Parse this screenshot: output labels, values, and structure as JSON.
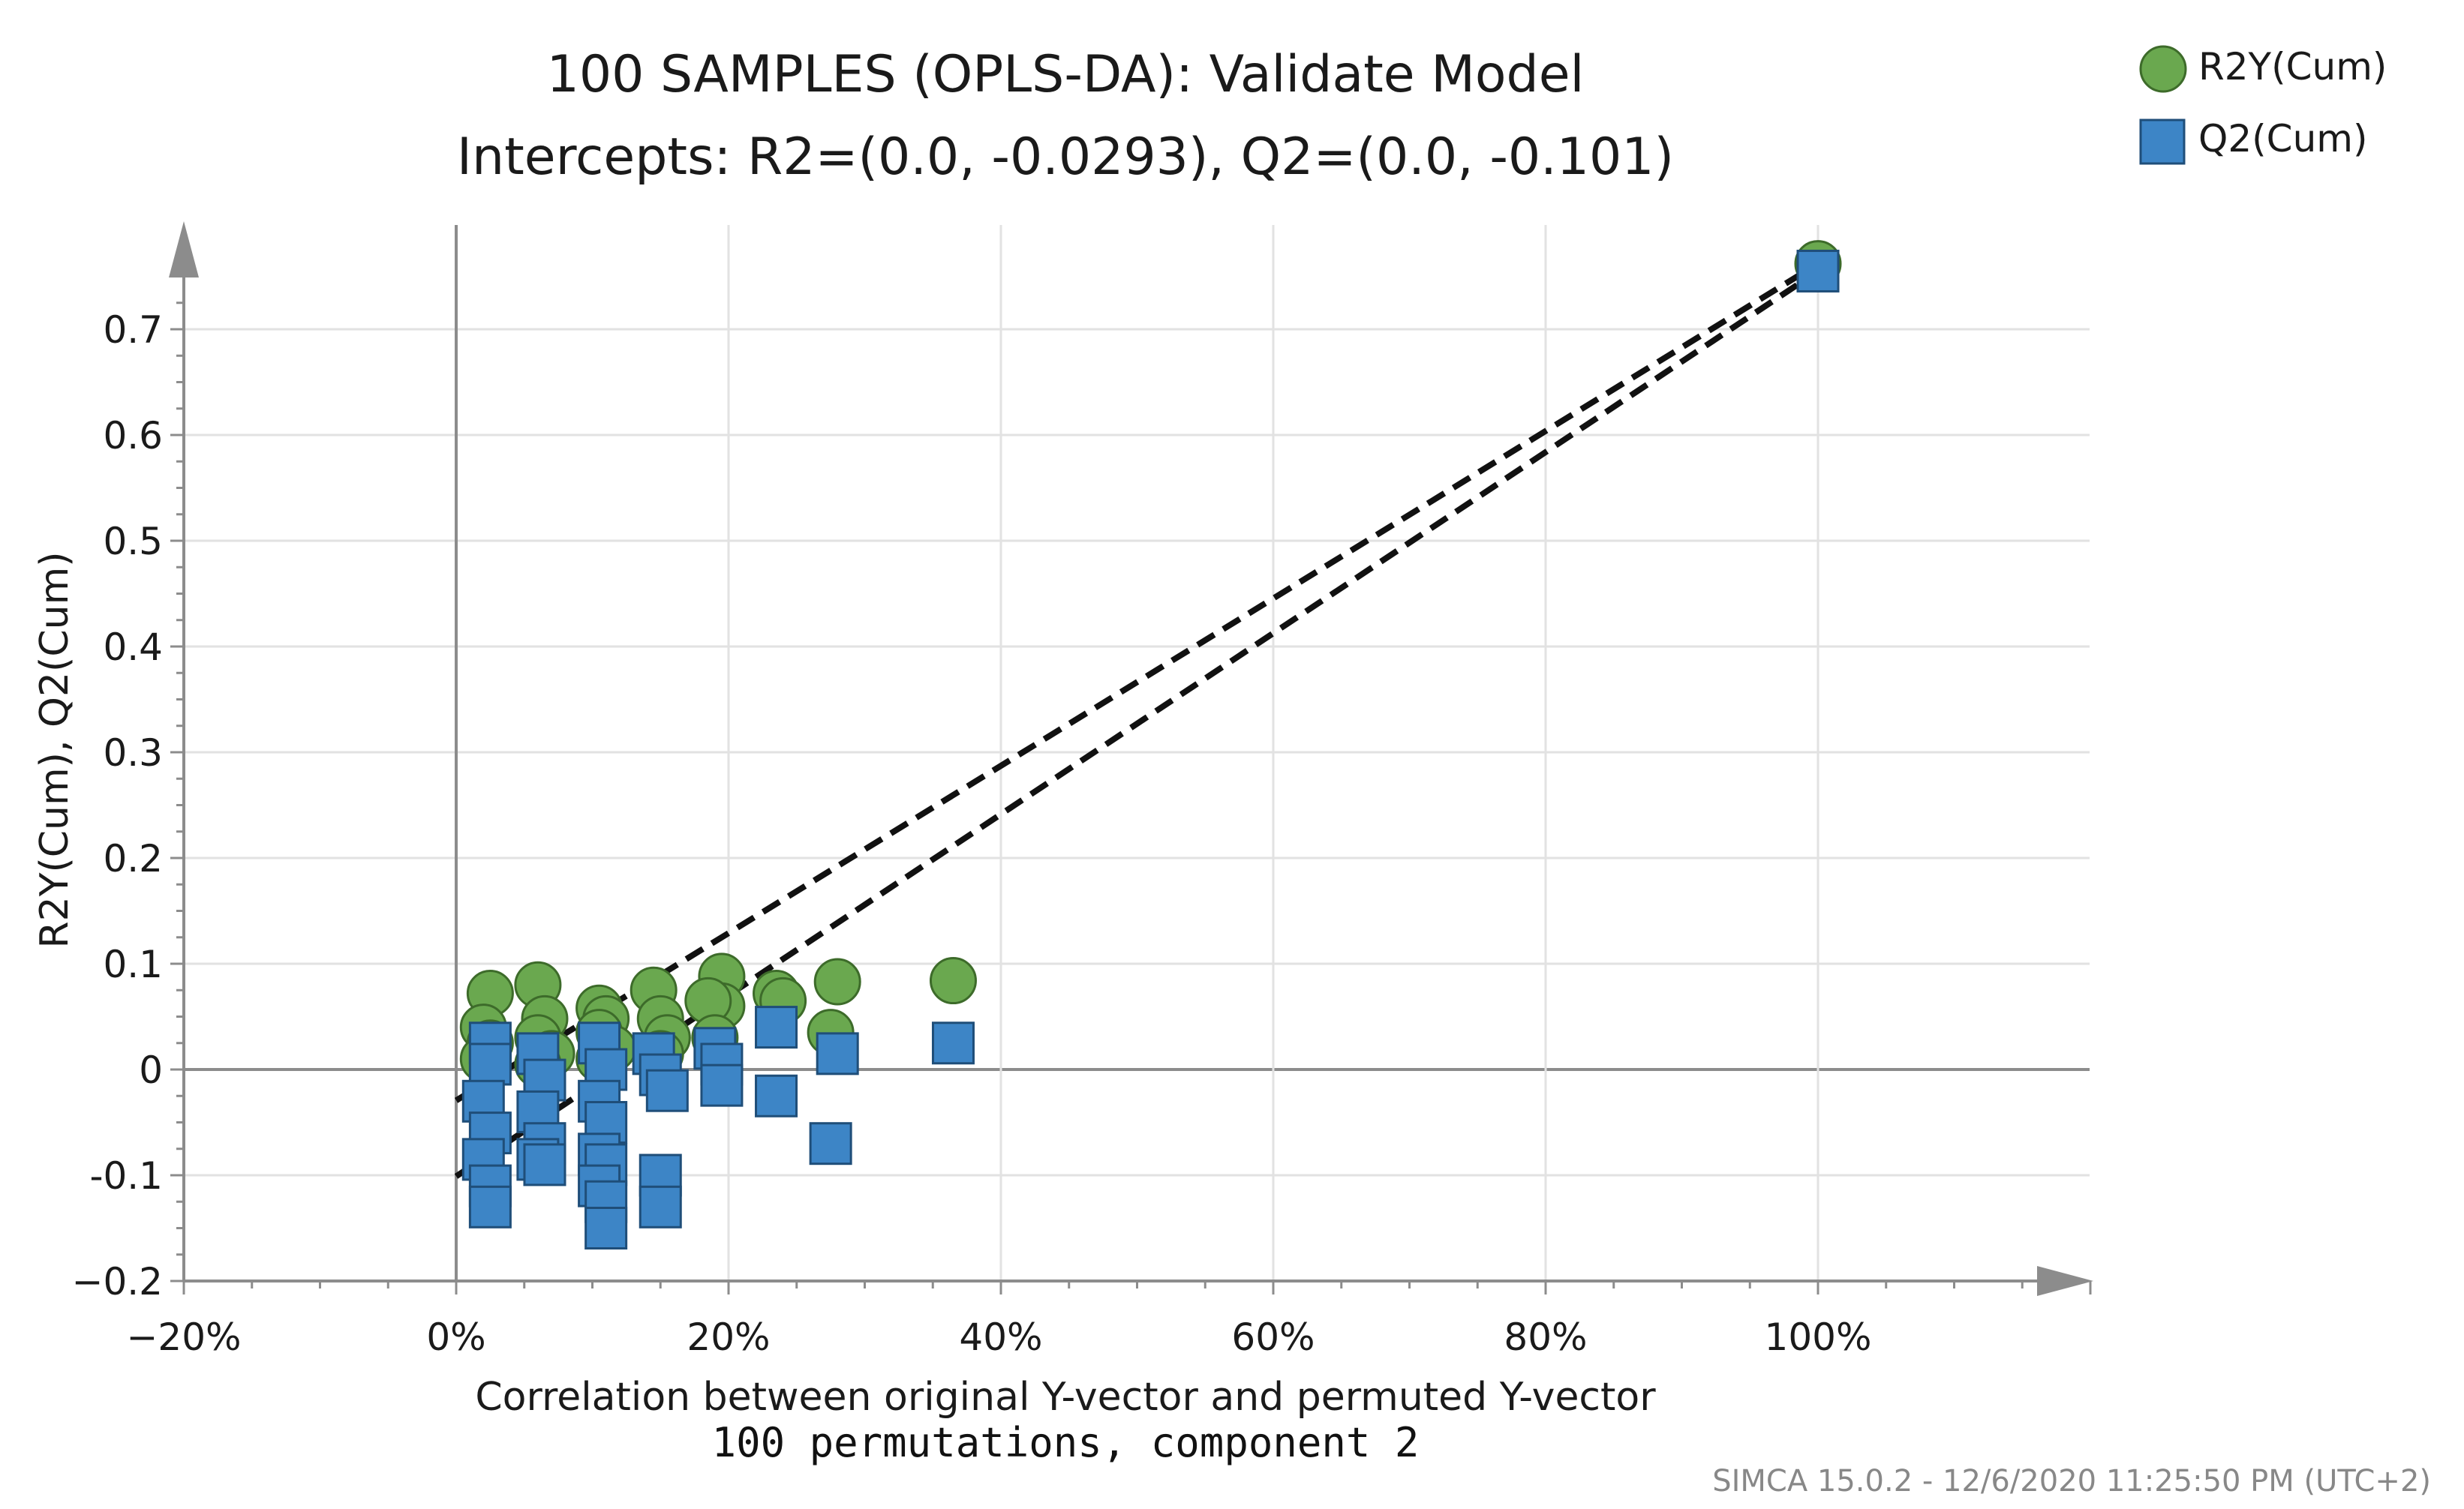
{
  "chart_data": {
    "type": "scatter",
    "title": "100 SAMPLES (OPLS-DA): Validate Model",
    "subtitle": "Intercepts: R2=(0.0, -0.0293), Q2=(0.0, -0.101)",
    "xlabel": "Correlation between original Y-vector and permuted Y-vector",
    "xlabel2": "100 permutations, component 2",
    "ylabel": "R2Y(Cum), Q2(Cum)",
    "footer": "SIMCA 15.0.2 - 12/6/2020 11:25:50 PM (UTC+2)",
    "xlim": [
      -20,
      120
    ],
    "ylim": [
      -0.2,
      0.8
    ],
    "x_ticks": [
      -20,
      0,
      20,
      40,
      60,
      80,
      100
    ],
    "x_tick_labels": [
      "−20%",
      "0%",
      "20%",
      "40%",
      "60%",
      "80%",
      "100%"
    ],
    "y_ticks": [
      -0.2,
      -0.1,
      0,
      0.1,
      0.2,
      0.3,
      0.4,
      0.5,
      0.6,
      0.7
    ],
    "y_tick_labels": [
      "−0.2",
      "-0.1",
      "0",
      "0.1",
      "0.2",
      "0.3",
      "0.4",
      "0.5",
      "0.6",
      "0.7"
    ],
    "grid": true,
    "legend_position": "top-right",
    "series": [
      {
        "name": "R2Y(Cum)",
        "marker": "circle",
        "color": "#6aa84f",
        "edge_color": "#3d6b2a",
        "points": [
          [
            2.5,
            0.072
          ],
          [
            2.0,
            0.04
          ],
          [
            2.5,
            0.025
          ],
          [
            2.0,
            0.01
          ],
          [
            6.0,
            0.08
          ],
          [
            6.5,
            0.048
          ],
          [
            6.0,
            0.03
          ],
          [
            7.0,
            0.015
          ],
          [
            6.0,
            0.005
          ],
          [
            10.5,
            0.058
          ],
          [
            11.0,
            0.048
          ],
          [
            10.5,
            0.035
          ],
          [
            11.5,
            0.02
          ],
          [
            10.5,
            0.01
          ],
          [
            14.5,
            0.075
          ],
          [
            15.0,
            0.048
          ],
          [
            15.5,
            0.03
          ],
          [
            15.0,
            0.015
          ],
          [
            19.5,
            0.088
          ],
          [
            19.5,
            0.06
          ],
          [
            18.5,
            0.065
          ],
          [
            19.0,
            0.03
          ],
          [
            23.5,
            0.072
          ],
          [
            24.0,
            0.065
          ],
          [
            28.0,
            0.083
          ],
          [
            27.5,
            0.035
          ],
          [
            36.5,
            0.084
          ],
          [
            100.0,
            0.762
          ]
        ]
      },
      {
        "name": "Q2(Cum)",
        "marker": "square",
        "color": "#3d85c6",
        "edge_color": "#1f4e79",
        "points": [
          [
            2.5,
            0.025
          ],
          [
            2.5,
            0.005
          ],
          [
            2.0,
            -0.03
          ],
          [
            2.5,
            -0.06
          ],
          [
            2.0,
            -0.085
          ],
          [
            2.5,
            -0.11
          ],
          [
            2.5,
            -0.13
          ],
          [
            6.0,
            0.015
          ],
          [
            6.5,
            -0.01
          ],
          [
            6.0,
            -0.04
          ],
          [
            6.5,
            -0.07
          ],
          [
            6.0,
            -0.085
          ],
          [
            6.5,
            -0.09
          ],
          [
            10.5,
            0.025
          ],
          [
            11.0,
            0.0
          ],
          [
            10.5,
            -0.03
          ],
          [
            11.0,
            -0.05
          ],
          [
            10.5,
            -0.08
          ],
          [
            11.0,
            -0.09
          ],
          [
            10.5,
            -0.11
          ],
          [
            11.0,
            -0.125
          ],
          [
            11.0,
            -0.15
          ],
          [
            14.5,
            0.015
          ],
          [
            15.0,
            -0.005
          ],
          [
            15.5,
            -0.02
          ],
          [
            15.0,
            -0.1
          ],
          [
            15.0,
            -0.13
          ],
          [
            19.0,
            0.02
          ],
          [
            19.5,
            0.005
          ],
          [
            19.5,
            -0.015
          ],
          [
            23.5,
            0.04
          ],
          [
            23.5,
            -0.025
          ],
          [
            28.0,
            0.015
          ],
          [
            27.5,
            -0.07
          ],
          [
            36.5,
            0.025
          ],
          [
            100.0,
            0.755
          ]
        ]
      }
    ],
    "regression_lines": [
      {
        "series": "R2Y(Cum)",
        "from": [
          0.0,
          -0.0293
        ],
        "to": [
          100.0,
          0.762
        ]
      },
      {
        "series": "Q2(Cum)",
        "from": [
          0.0,
          -0.101
        ],
        "to": [
          100.0,
          0.755
        ]
      }
    ]
  }
}
